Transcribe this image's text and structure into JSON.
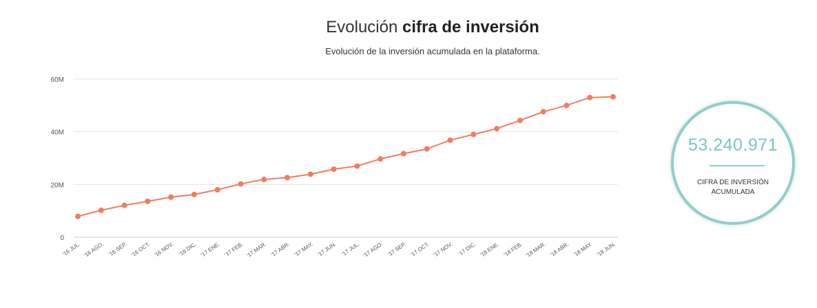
{
  "header": {
    "title_regular": "Evolución ",
    "title_bold": "cifra de inversión",
    "subtitle": "Evolución de la inversión acumulada en la plataforma."
  },
  "kpi": {
    "value": "53.240.971",
    "label_line1": "CIFRA DE INVERSIÓN",
    "label_line2": "ACUMULADA",
    "accent_color": "#8ccfcb"
  },
  "chart_data": {
    "type": "line",
    "title": "Evolución cifra de inversión",
    "subtitle": "Evolución de la inversión acumulada en la plataforma.",
    "xlabel": "",
    "ylabel": "",
    "ylim": [
      0,
      60000000
    ],
    "y_ticks": [
      0,
      20000000,
      40000000,
      60000000
    ],
    "y_tick_labels": [
      "0",
      "20M",
      "40M",
      "60M"
    ],
    "grid": true,
    "legend": "none",
    "line_color": "#f27c5e",
    "categories": [
      "'16 JUL.",
      "'16 AGO.",
      "'16 SEP.",
      "'16 OCT.",
      "'16 NOV.",
      "'16 DIC.",
      "'17 ENE.",
      "'17 FEB.",
      "'17 MAR.",
      "'17 ABR.",
      "'17 MAY.",
      "'17 JUN.",
      "'17 JUL.",
      "'17 AGO.",
      "'17 SEP.",
      "'17 OCT.",
      "'17 NOV.",
      "'17 DIC.",
      "'18 ENE.",
      "'18 FEB.",
      "'18 MAR.",
      "'18 ABR.",
      "'18 MAY.",
      "'18 JUN."
    ],
    "values": [
      7900000,
      10200000,
      12100000,
      13600000,
      15200000,
      16200000,
      18000000,
      20200000,
      21900000,
      22600000,
      23900000,
      25800000,
      27000000,
      29700000,
      31700000,
      33500000,
      36800000,
      39000000,
      41200000,
      44300000,
      47600000,
      50000000,
      53000000,
      53240971
    ]
  }
}
